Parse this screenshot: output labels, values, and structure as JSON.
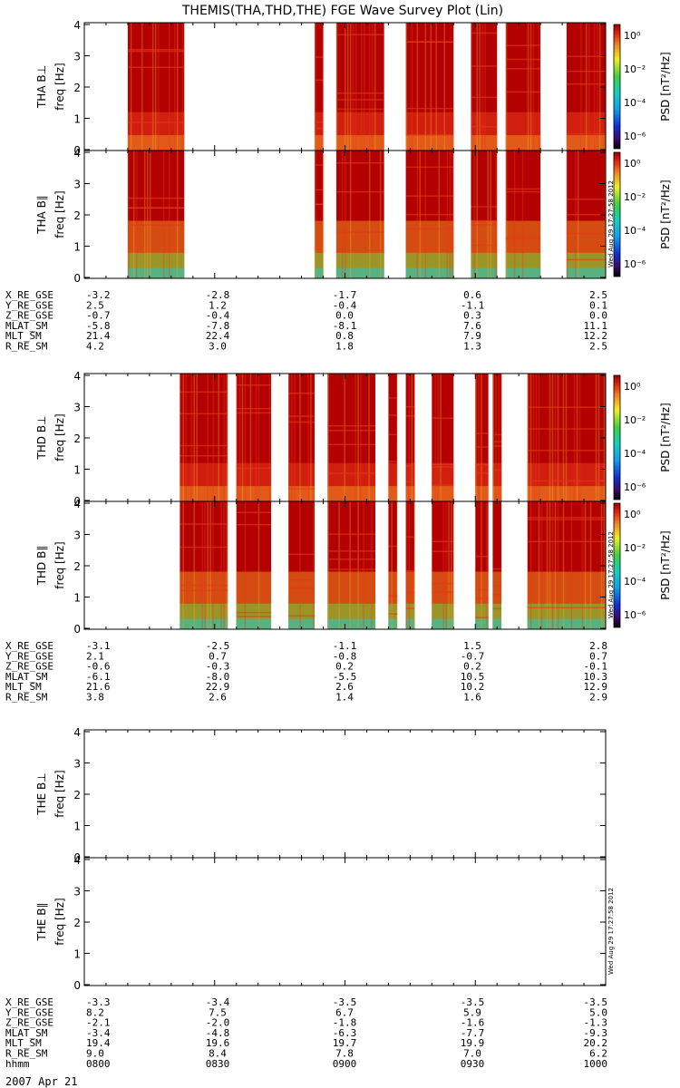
{
  "title": "THEMIS(THA,THD,THE) FGE Wave Survey Plot (Lin)",
  "date_label": "2007 Apr 21",
  "stamp": "Wed Aug 29 17:27:58 2012",
  "colors": {
    "background": "#ffffff",
    "hot": "#b30000",
    "warm": "#e8381a",
    "mid": "#f08a20",
    "cool": "#6cd23a",
    "cold": "#1fc8c8",
    "frame": "#000000"
  },
  "chart_data": [
    {
      "type": "heatmap",
      "probe": "THA",
      "panels": [
        {
          "ylabel": "THA B⊥",
          "component": "perp",
          "ylim": [
            0,
            4
          ],
          "yticks": [
            "0",
            "1",
            "2",
            "3",
            "4"
          ],
          "unit_label": "freq [Hz]",
          "colorbar": {
            "label": "PSD [nT²/Hz]",
            "ticks": [
              "10⁰",
              "10⁻²",
              "10⁻⁴",
              "10⁻⁶"
            ]
          }
        },
        {
          "ylabel": "THA B∥",
          "component": "par",
          "ylim": [
            0,
            4
          ],
          "yticks": [
            "0",
            "1",
            "2",
            "3",
            "4"
          ],
          "unit_label": "freq [Hz]",
          "colorbar": {
            "label": "PSD [nT²/Hz]",
            "ticks": [
              "10⁰",
              "10⁻²",
              "10⁻⁴",
              "10⁻⁶"
            ]
          }
        }
      ],
      "data_intervals_hhmm": [
        [
          "0810",
          "0823"
        ],
        [
          "0853",
          "0855"
        ],
        [
          "0858",
          "0909"
        ],
        [
          "0914",
          "0925"
        ],
        [
          "0929",
          "0935"
        ],
        [
          "0937",
          "0945"
        ],
        [
          "0951",
          "1000"
        ]
      ],
      "ephemeris": {
        "labels": [
          "X_RE_GSE",
          "Y_RE_GSE",
          "Z_RE_GSE",
          "MLAT_SM",
          "MLT_SM",
          "R_RE_SM"
        ],
        "columns": [
          [
            "-3.2",
            "2.5",
            "-0.7",
            "-5.8",
            "21.4",
            "4.2"
          ],
          [
            "-2.8",
            "1.2",
            "-0.4",
            "-7.8",
            "22.4",
            "3.0"
          ],
          [
            "-1.7",
            "-0.4",
            "0.0",
            "-8.1",
            "0.8",
            "1.8"
          ],
          [
            "0.6",
            "-1.1",
            "0.3",
            "7.6",
            "7.9",
            "1.3"
          ],
          [
            "2.5",
            "0.1",
            "0.0",
            "11.1",
            "12.2",
            "2.5"
          ]
        ]
      }
    },
    {
      "type": "heatmap",
      "probe": "THD",
      "panels": [
        {
          "ylabel": "THD B⊥",
          "component": "perp",
          "ylim": [
            0,
            4
          ],
          "yticks": [
            "0",
            "1",
            "2",
            "3",
            "4"
          ],
          "unit_label": "freq [Hz]",
          "colorbar": {
            "label": "PSD [nT²/Hz]",
            "ticks": [
              "10⁰",
              "10⁻²",
              "10⁻⁴",
              "10⁻⁶"
            ]
          }
        },
        {
          "ylabel": "THD B∥",
          "component": "par",
          "ylim": [
            0,
            4
          ],
          "yticks": [
            "0",
            "1",
            "2",
            "3",
            "4"
          ],
          "unit_label": "freq [Hz]",
          "colorbar": {
            "label": "PSD [nT²/Hz]",
            "ticks": [
              "10⁰",
              "10⁻²",
              "10⁻⁴",
              "10⁻⁶"
            ]
          }
        }
      ],
      "data_intervals_hhmm": [
        [
          "0822",
          "0833"
        ],
        [
          "0835",
          "0843"
        ],
        [
          "0847",
          "0853"
        ],
        [
          "0856",
          "0907"
        ],
        [
          "0910",
          "0912"
        ],
        [
          "0914",
          "0916"
        ],
        [
          "0920",
          "0925"
        ],
        [
          "0930",
          "0933"
        ],
        [
          "0934",
          "0936"
        ],
        [
          "0942",
          "1000"
        ]
      ],
      "ephemeris": {
        "labels": [
          "X_RE_GSE",
          "Y_RE_GSE",
          "Z_RE_GSE",
          "MLAT_SM",
          "MLT_SM",
          "R_RE_SM"
        ],
        "columns": [
          [
            "-3.1",
            "2.1",
            "-0.6",
            "-6.1",
            "21.6",
            "3.8"
          ],
          [
            "-2.5",
            "0.7",
            "-0.3",
            "-8.0",
            "22.9",
            "2.6"
          ],
          [
            "-1.1",
            "-0.8",
            "0.2",
            "-5.5",
            "2.6",
            "1.4"
          ],
          [
            "1.5",
            "-0.7",
            "0.2",
            "10.5",
            "10.2",
            "1.6"
          ],
          [
            "2.8",
            "0.7",
            "-0.1",
            "10.3",
            "12.9",
            "2.9"
          ]
        ]
      }
    },
    {
      "type": "heatmap",
      "probe": "THE",
      "panels": [
        {
          "ylabel": "THE B⊥",
          "component": "perp",
          "ylim": [
            0,
            4
          ],
          "yticks": [
            "0",
            "1",
            "2",
            "3",
            "4"
          ],
          "unit_label": "freq [Hz]"
        },
        {
          "ylabel": "THE B∥",
          "component": "par",
          "ylim": [
            0,
            4
          ],
          "yticks": [
            "0",
            "1",
            "2",
            "3",
            "4"
          ],
          "unit_label": "freq [Hz]"
        }
      ],
      "data_intervals_hhmm": [],
      "ephemeris": {
        "labels": [
          "X_RE_GSE",
          "Y_RE_GSE",
          "Z_RE_GSE",
          "MLAT_SM",
          "MLT_SM",
          "R_RE_SM",
          "hhmm"
        ],
        "columns": [
          [
            "-3.3",
            "8.2",
            "-2.1",
            "-3.4",
            "19.4",
            "9.0",
            "0800"
          ],
          [
            "-3.4",
            "7.5",
            "-2.0",
            "-4.8",
            "19.6",
            "8.4",
            "0830"
          ],
          [
            "-3.5",
            "6.7",
            "-1.8",
            "-6.3",
            "19.7",
            "7.8",
            "0900"
          ],
          [
            "-3.5",
            "5.9",
            "-1.6",
            "-7.7",
            "19.9",
            "7.0",
            "0930"
          ],
          [
            "-3.5",
            "5.0",
            "-1.3",
            "-9.3",
            "20.2",
            "6.2",
            "1000"
          ]
        ]
      }
    }
  ]
}
